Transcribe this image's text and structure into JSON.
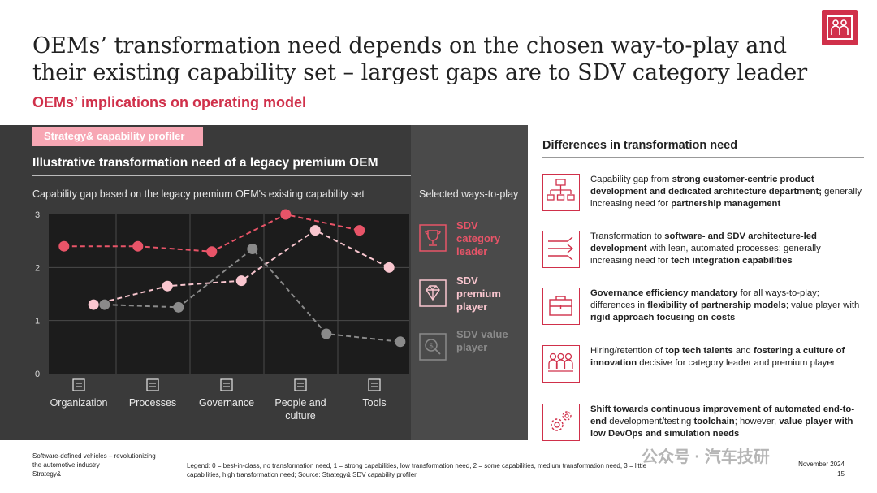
{
  "header": {
    "title": "OEMs’ transformation need depends on the chosen way-to-play and their existing capability set – largest gaps are to SDV category leader",
    "subtitle": "OEMs’ implications on operating model"
  },
  "panel": {
    "tag": "Strategy& capability profiler",
    "chart_heading": "Illustrative transformation need of a legacy premium OEM",
    "chart_subheading": "Capability gap based on the legacy premium OEM's existing capability set",
    "ways_header": "Selected ways-to-play",
    "ways": [
      {
        "label": "SDV category leader",
        "color": "#e85468",
        "icon": "trophy-icon"
      },
      {
        "label": "SDV premium player",
        "color": "#f9c6cf",
        "icon": "diamond-icon"
      },
      {
        "label": "SDV value player",
        "color": "#8a8a8a",
        "icon": "price-tag-icon"
      }
    ]
  },
  "chart_data": {
    "type": "line",
    "categories": [
      "Organization",
      "Processes",
      "Governance",
      "People and culture",
      "Tools"
    ],
    "category_icons": [
      "org-chart-icon",
      "process-icon",
      "governance-icon",
      "people-icon",
      "tools-icon"
    ],
    "ylim": [
      0,
      3
    ],
    "yticks": [
      "0",
      "1",
      "2",
      "3"
    ],
    "grid": true,
    "series": [
      {
        "name": "SDV category leader",
        "color": "#e85468",
        "x": [
          0.8,
          1.8,
          2.8,
          3.8,
          4.8
        ],
        "values": [
          2.4,
          2.4,
          2.3,
          3.0,
          2.7
        ]
      },
      {
        "name": "SDV premium player",
        "color": "#f9c6cf",
        "x": [
          1.2,
          2.2,
          3.2,
          4.2,
          5.2
        ],
        "values": [
          1.3,
          1.65,
          1.75,
          2.7,
          2.0
        ]
      },
      {
        "name": "SDV value player",
        "color": "#8a8a8a",
        "x": [
          1.35,
          2.35,
          3.35,
          4.35,
          5.35
        ],
        "values": [
          1.3,
          1.25,
          2.35,
          0.75,
          0.6
        ]
      }
    ]
  },
  "differences": {
    "heading": "Differences in transformation need",
    "rows": [
      {
        "icon": "org-structure-icon",
        "parts": [
          {
            "t": "Capability gap from ",
            "b": false
          },
          {
            "t": "strong customer-centric product development and dedicated architecture department;",
            "b": true
          },
          {
            "t": " generally increasing need for ",
            "b": false
          },
          {
            "t": "partnership management",
            "b": true
          }
        ]
      },
      {
        "icon": "arrows-icon",
        "parts": [
          {
            "t": "Transformation to ",
            "b": false
          },
          {
            "t": "software- and SDV architecture-led development",
            "b": true
          },
          {
            "t": " with lean, automated processes; generally increasing need for ",
            "b": false
          },
          {
            "t": "tech integration capabilities",
            "b": true
          }
        ]
      },
      {
        "icon": "briefcase-icon",
        "parts": [
          {
            "t": "Governance efficiency mandatory",
            "b": true
          },
          {
            "t": " for all ways-to-play; differences in ",
            "b": false
          },
          {
            "t": "flexibility of partnership models",
            "b": true
          },
          {
            "t": "; value player with ",
            "b": false
          },
          {
            "t": "rigid approach focusing on costs",
            "b": true
          }
        ]
      },
      {
        "icon": "people-group-icon",
        "parts": [
          {
            "t": "Hiring/retention of ",
            "b": false
          },
          {
            "t": "top tech talents",
            "b": true
          },
          {
            "t": " and ",
            "b": false
          },
          {
            "t": "fostering a culture of innovation",
            "b": true
          },
          {
            "t": " decisive for category leader and premium player",
            "b": false
          }
        ]
      },
      {
        "icon": "gears-icon",
        "parts": [
          {
            "t": "Shift towards continuous improvement of automated end-to-end",
            "b": true
          },
          {
            "t": " development/testing ",
            "b": false
          },
          {
            "t": "toolchain",
            "b": true
          },
          {
            "t": "; however, ",
            "b": false
          },
          {
            "t": "value player with low DevOps and simulation needs",
            "b": true
          }
        ]
      }
    ]
  },
  "footer": {
    "left_line1": "Software-defined vehicles – revolutionizing",
    "left_line2": "the automotive industry",
    "left_line3": "Strategy&",
    "legend": "Legend: 0 = best-in-class, no transformation need, 1 = strong capabilities, low transformation need, 2 = some capabilities, medium transformation need, 3 = little capabilities, high transformation need; Source: Strategy& SDV capability profiler",
    "date": "November 2024",
    "page": "15",
    "watermark": "公众号 · 汽车技研"
  },
  "colors": {
    "accent": "#d0304a",
    "panel": "#3a3a3a",
    "panel_right": "#4a4a4a",
    "tag": "#f7a7b4"
  }
}
